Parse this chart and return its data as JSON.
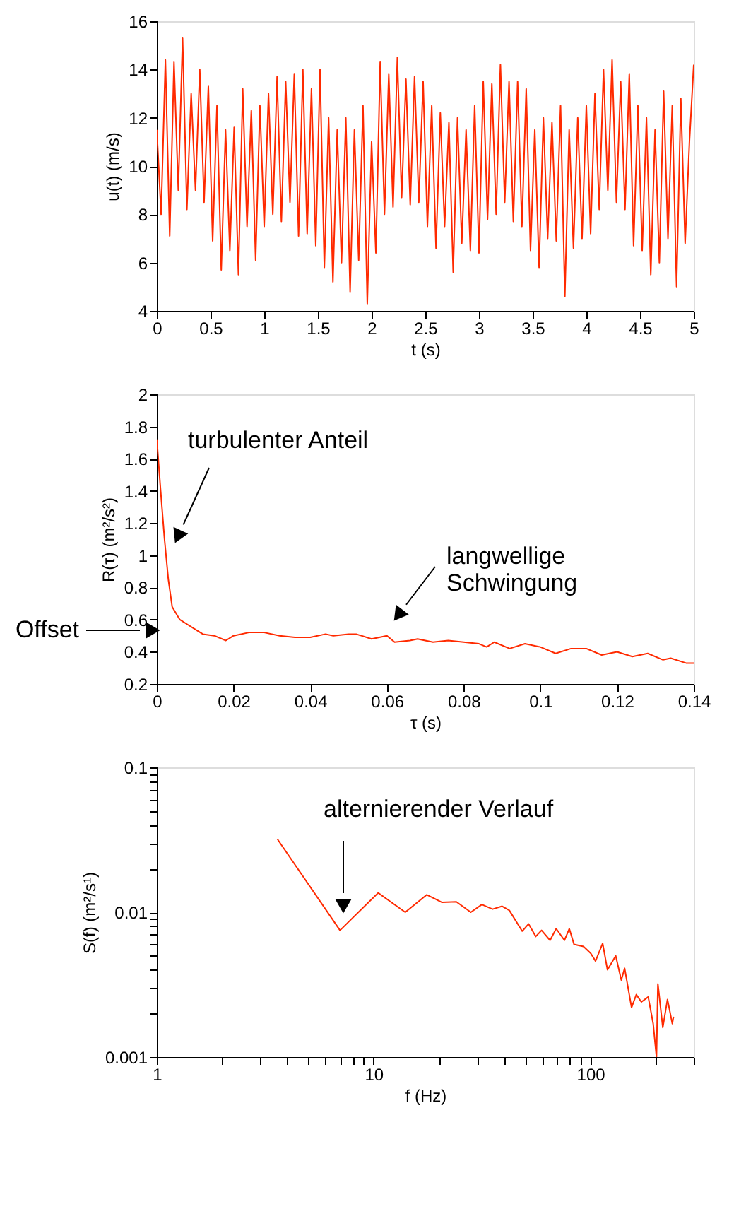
{
  "chart_data": [
    {
      "type": "line",
      "xlabel": "t (s)",
      "ylabel": "u(t) (m/s)",
      "xlim": [
        0,
        5
      ],
      "ylim": [
        4,
        16
      ],
      "xticks": [
        0,
        0.5,
        1,
        1.5,
        2,
        2.5,
        3,
        3.5,
        4,
        4.5,
        5
      ],
      "yticks": [
        4,
        6,
        8,
        10,
        12,
        14,
        16
      ],
      "grid": false,
      "series": [
        {
          "color": "#ff2a00",
          "x": [
            0,
            0.04,
            0.08,
            0.12,
            0.16,
            0.2,
            0.24,
            0.28,
            0.32,
            0.36,
            0.4,
            0.44,
            0.48,
            0.52,
            0.56,
            0.6,
            0.64,
            0.68,
            0.72,
            0.76,
            0.8,
            0.84,
            0.88,
            0.92,
            0.96,
            1,
            1.04,
            1.08,
            1.12,
            1.16,
            1.2,
            1.24,
            1.28,
            1.32,
            1.36,
            1.4,
            1.44,
            1.48,
            1.52,
            1.56,
            1.6,
            1.64,
            1.68,
            1.72,
            1.76,
            1.8,
            1.84,
            1.88,
            1.92,
            1.96,
            2,
            2.04,
            2.08,
            2.12,
            2.16,
            2.2,
            2.24,
            2.28,
            2.32,
            2.36,
            2.4,
            2.44,
            2.48,
            2.52,
            2.56,
            2.6,
            2.64,
            2.68,
            2.72,
            2.76,
            2.8,
            2.84,
            2.88,
            2.92,
            2.96,
            3,
            3.04,
            3.08,
            3.12,
            3.16,
            3.2,
            3.24,
            3.28,
            3.32,
            3.36,
            3.4,
            3.44,
            3.48,
            3.52,
            3.56,
            3.6,
            3.64,
            3.68,
            3.72,
            3.76,
            3.8,
            3.84,
            3.88,
            3.92,
            3.96,
            4,
            4.04,
            4.08,
            4.12,
            4.16,
            4.2,
            4.24,
            4.28,
            4.32,
            4.36,
            4.4,
            4.44,
            4.48,
            4.52,
            4.56,
            4.6,
            4.64,
            4.68,
            4.72,
            4.76,
            4.8,
            4.84,
            4.88,
            4.92,
            4.96,
            5
          ],
          "values": [
            11.5,
            8,
            14.4,
            7.1,
            14.3,
            9,
            15.3,
            8.2,
            13,
            9,
            14,
            8.5,
            13.3,
            6.9,
            12.5,
            5.7,
            11.5,
            6.5,
            11.6,
            5.5,
            13.2,
            7.5,
            12.3,
            6.1,
            12.5,
            7.5,
            13,
            8,
            13.7,
            7.7,
            13.5,
            8.5,
            13.8,
            7.1,
            14,
            7.2,
            13.2,
            6.7,
            14,
            5.8,
            12,
            5.2,
            11.5,
            6,
            12,
            4.8,
            11.5,
            6.1,
            12.5,
            4.3,
            11,
            6.4,
            14.3,
            8,
            13.8,
            8.3,
            14.5,
            8.7,
            13.6,
            8.4,
            13.7,
            8.5,
            13.5,
            7.5,
            12.5,
            6.6,
            12.2,
            7.5,
            11.8,
            5.6,
            12,
            6.8,
            11.5,
            6.5,
            12.5,
            6.4,
            13.5,
            7.8,
            13.4,
            8,
            14.2,
            8.5,
            13.5,
            7.7,
            13.5,
            7.5,
            13.2,
            6.5,
            11.5,
            5.8,
            12,
            7,
            11.8,
            6.9,
            12.5,
            4.6,
            11.5,
            6.6,
            12,
            7,
            12.5,
            7.2,
            13,
            8.2,
            14,
            9,
            14.4,
            8.5,
            13.5,
            8.2,
            13.8,
            6.7,
            12.5,
            6.5,
            12,
            5.5,
            11.5,
            6,
            13.1,
            7,
            12.5,
            5,
            12.8,
            6.8,
            11,
            14.2
          ]
        }
      ]
    },
    {
      "type": "line",
      "xlabel": "τ (s)",
      "ylabel": "R(τ) (m²/s²)",
      "xlim": [
        0,
        0.14
      ],
      "ylim": [
        0.2,
        2
      ],
      "xticks": [
        0,
        0.02,
        0.04,
        0.06,
        0.08,
        0.1,
        0.12,
        0.14
      ],
      "yticks": [
        0.2,
        0.4,
        0.6,
        0.8,
        1,
        1.2,
        1.4,
        1.6,
        1.8,
        2
      ],
      "grid": false,
      "annotations": [
        "turbulenter Anteil",
        "langwellige\nSchwingung",
        "Offset"
      ],
      "series": [
        {
          "color": "#ff2a00",
          "x": [
            0,
            0.001,
            0.002,
            0.003,
            0.004,
            0.006,
            0.008,
            0.01,
            0.012,
            0.015,
            0.018,
            0.02,
            0.024,
            0.028,
            0.032,
            0.036,
            0.04,
            0.044,
            0.046,
            0.05,
            0.052,
            0.056,
            0.06,
            0.062,
            0.066,
            0.068,
            0.072,
            0.076,
            0.08,
            0.084,
            0.086,
            0.088,
            0.092,
            0.096,
            0.1,
            0.104,
            0.108,
            0.112,
            0.116,
            0.12,
            0.124,
            0.128,
            0.132,
            0.134,
            0.138,
            0.14
          ],
          "values": [
            1.72,
            1.4,
            1.1,
            0.85,
            0.68,
            0.6,
            0.57,
            0.54,
            0.51,
            0.5,
            0.47,
            0.5,
            0.52,
            0.52,
            0.5,
            0.49,
            0.49,
            0.51,
            0.5,
            0.51,
            0.51,
            0.48,
            0.5,
            0.46,
            0.47,
            0.48,
            0.46,
            0.47,
            0.46,
            0.45,
            0.43,
            0.46,
            0.42,
            0.45,
            0.43,
            0.39,
            0.42,
            0.42,
            0.38,
            0.4,
            0.37,
            0.39,
            0.35,
            0.36,
            0.33,
            0.33
          ]
        }
      ]
    },
    {
      "type": "line",
      "xlabel": "f (Hz)",
      "ylabel": "S(f) (m²/s¹)",
      "log": "xy",
      "xlim": [
        1,
        300
      ],
      "ylim": [
        0.001,
        0.1
      ],
      "xticks": [
        1,
        {
          "value": 2,
          "label": null
        },
        {
          "value": 3,
          "label": null
        },
        {
          "value": 4,
          "label": null
        },
        {
          "value": 5,
          "label": null
        },
        {
          "value": 6,
          "label": null
        },
        {
          "value": 7,
          "label": null
        },
        {
          "value": 8,
          "label": null
        },
        {
          "value": 9,
          "label": null
        },
        10,
        {
          "value": 20,
          "label": null
        },
        {
          "value": 30,
          "label": null
        },
        {
          "value": 40,
          "label": null
        },
        {
          "value": 50,
          "label": null
        },
        {
          "value": 60,
          "label": null
        },
        {
          "value": 70,
          "label": null
        },
        {
          "value": 80,
          "label": null
        },
        {
          "value": 90,
          "label": null
        },
        100,
        {
          "value": 200,
          "label": null
        },
        {
          "value": 300,
          "label": null
        }
      ],
      "yticks": [
        0.001,
        {
          "value": 0.002,
          "label": null
        },
        {
          "value": 0.003,
          "label": null
        },
        {
          "value": 0.004,
          "label": null
        },
        {
          "value": 0.005,
          "label": null
        },
        {
          "value": 0.006,
          "label": null
        },
        {
          "value": 0.007,
          "label": null
        },
        {
          "value": 0.008,
          "label": null
        },
        {
          "value": 0.009,
          "label": null
        },
        0.01,
        {
          "value": 0.02,
          "label": null
        },
        {
          "value": 0.03,
          "label": null
        },
        {
          "value": 0.04,
          "label": null
        },
        {
          "value": 0.05,
          "label": null
        },
        {
          "value": 0.06,
          "label": null
        },
        {
          "value": 0.07,
          "label": null
        },
        {
          "value": 0.08,
          "label": null
        },
        {
          "value": 0.09,
          "label": null
        },
        0.1
      ],
      "grid": false,
      "annotations": [
        "alternierender Verlauf"
      ],
      "series": [
        {
          "color": "#ff2a00",
          "x": [
            3.6,
            7,
            10.5,
            14,
            17.6,
            20.7,
            24.1,
            28.1,
            31.6,
            35.4,
            39.2,
            42.3,
            48.5,
            51.9,
            56,
            59.6,
            65.2,
            69.6,
            76,
            80,
            84.1,
            93,
            100.5,
            105.7,
            114,
            120,
            131,
            139,
            144,
            155,
            163,
            172,
            185,
            195,
            202,
            205,
            216,
            227,
            239,
            242
          ],
          "values": [
            0.032,
            0.0075,
            0.0136,
            0.01,
            0.0132,
            0.0117,
            0.0118,
            0.01,
            0.0113,
            0.0105,
            0.011,
            0.0103,
            0.0074,
            0.0083,
            0.0068,
            0.0075,
            0.0064,
            0.0077,
            0.0064,
            0.0077,
            0.006,
            0.0058,
            0.0052,
            0.0046,
            0.0061,
            0.004,
            0.005,
            0.0034,
            0.0041,
            0.0022,
            0.0027,
            0.0024,
            0.0026,
            0.0017,
            0.001,
            0.0032,
            0.0016,
            0.0025,
            0.0017,
            0.0019
          ]
        }
      ]
    }
  ]
}
